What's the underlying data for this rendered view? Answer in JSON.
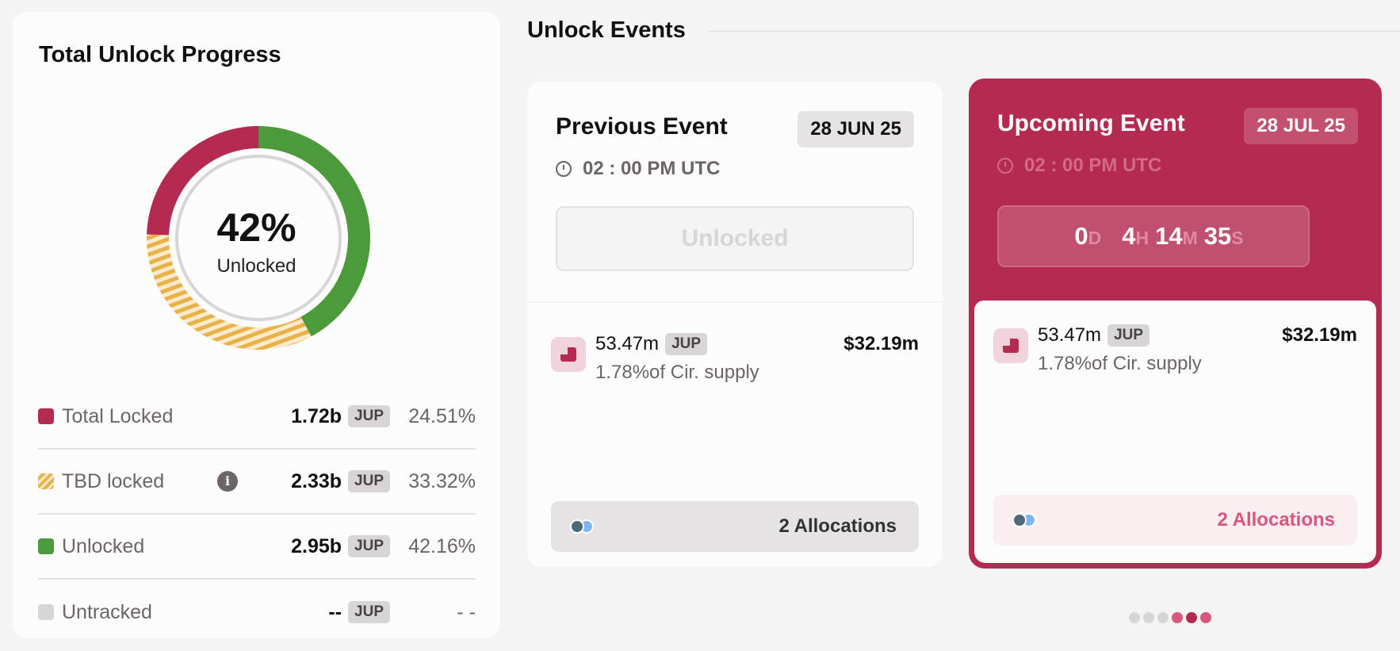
{
  "progress": {
    "title": "Total Unlock Progress",
    "center_value": "42%",
    "center_label": "Unlocked",
    "chart_data": {
      "type": "pie",
      "values": [
        42.16,
        33.32,
        24.51
      ],
      "labels": [
        "Unlocked",
        "TBD locked",
        "Total Locked"
      ],
      "colors": [
        "#4c9a3a",
        "#e8b24a",
        "#b42a51"
      ]
    },
    "legend": [
      {
        "label": "Total Locked",
        "value": "1.72b",
        "unit": "JUP",
        "pct": "24.51%",
        "color": "#b42a51"
      },
      {
        "label": "TBD locked",
        "value": "2.33b",
        "unit": "JUP",
        "pct": "33.32%",
        "color": "#e8b24a",
        "info": "i"
      },
      {
        "label": "Unlocked",
        "value": "2.95b",
        "unit": "JUP",
        "pct": "42.16%",
        "color": "#4c9a3a"
      },
      {
        "label": "Untracked",
        "value": "--",
        "unit": "JUP",
        "pct": "- -",
        "color": "#d9d4d6"
      }
    ]
  },
  "events": {
    "title": "Unlock Events",
    "previous": {
      "title": "Previous Event",
      "date": "28 JUN 25",
      "time": "02 : 00 PM UTC",
      "status": "Unlocked",
      "amount": "53.47m",
      "unit": "JUP",
      "supply": "1.78%of Cir. supply",
      "usd": "$32.19m",
      "allocations": "2 Allocations"
    },
    "upcoming": {
      "title": "Upcoming Event",
      "date": "28 JUL 25",
      "time": "02 : 00 PM UTC",
      "countdown": {
        "d": "0",
        "d_unit": "D",
        "h": "4",
        "h_unit": "H",
        "m": "14",
        "m_unit": "M",
        "s": "35",
        "s_unit": "S"
      },
      "amount": "53.47m",
      "unit": "JUP",
      "supply": "1.78%of Cir. supply",
      "usd": "$32.19m",
      "allocations": "2 Allocations"
    },
    "pager": {
      "count": 6,
      "active": 4
    }
  },
  "accent": "#b42a51"
}
